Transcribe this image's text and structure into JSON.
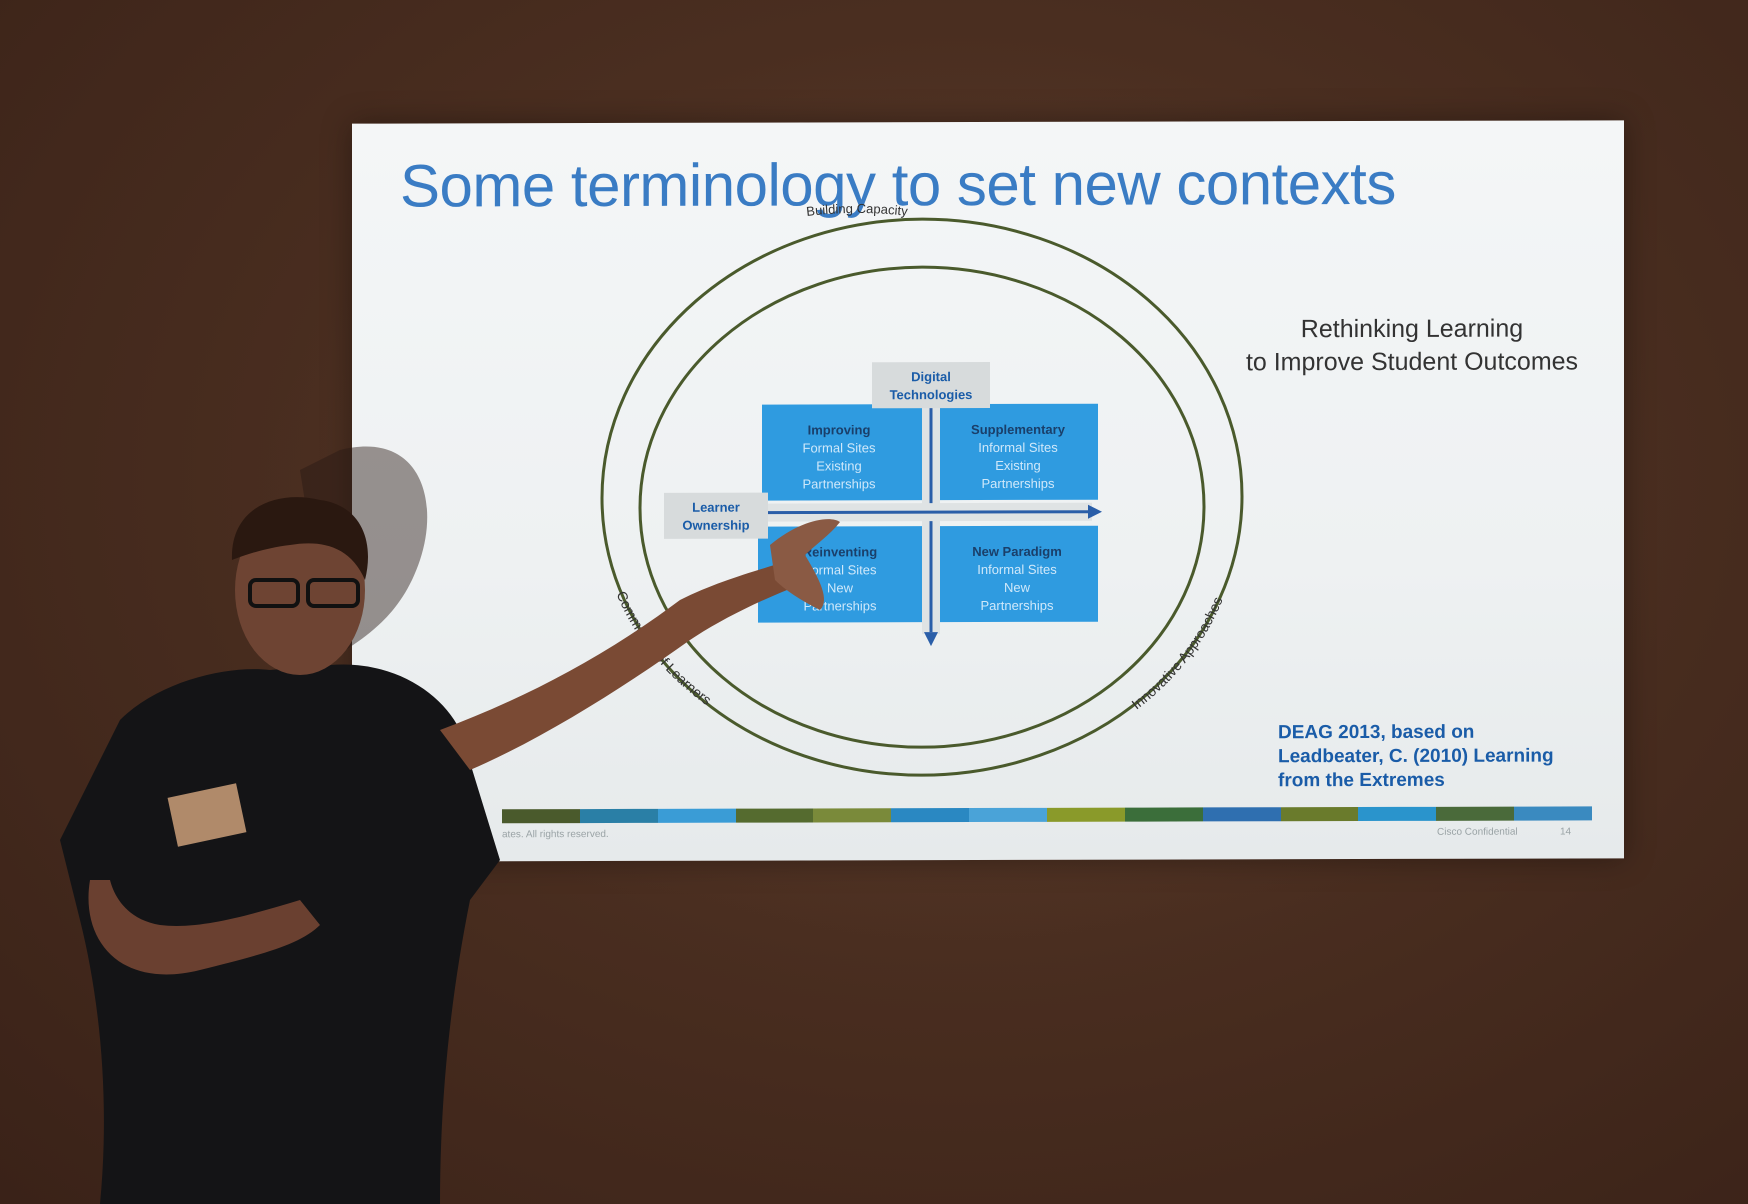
{
  "slide": {
    "title_part1": "Some terminology to set new contexts",
    "subtitle_line1": "Rethinking Learning",
    "subtitle_line2": "to Improve Student Outcomes",
    "credit_line1": "DEAG 2013, based on",
    "credit_line2": "Leadbeater, C. (2010) Learning",
    "credit_line3": "from the Extremes",
    "footer_left": "ates. All rights reserved.",
    "footer_right": "Cisco Confidential",
    "footer_page": "14"
  },
  "diagram": {
    "outer_ring_label": "Building Capacity",
    "left_ring_label": "Community of Learners",
    "right_ring_label": "Innovative Approaches",
    "y_axis_label_1": "Digital",
    "y_axis_label_2": "Technologies",
    "x_axis_label_1": "Learner",
    "x_axis_label_2": "Ownership",
    "quadrants": [
      {
        "title": "Improving",
        "line1": "Formal Sites",
        "line2": "Existing",
        "line3": "Partnerships"
      },
      {
        "title": "Supplementary",
        "line1": "Informal Sites",
        "line2": "Existing",
        "line3": "Partnerships"
      },
      {
        "title": "Reinventing",
        "line1": "Formal Sites",
        "line2": "New",
        "line3": "Partnerships"
      },
      {
        "title": "New Paradigm",
        "line1": "Informal Sites",
        "line2": "New",
        "line3": "Partnerships"
      }
    ]
  },
  "colors": {
    "title_blue": "#3a7cc4",
    "title_teal": "#3a6e6a",
    "quadrant_blue": "#2f9be0",
    "ring_green": "#4a5a2c",
    "credit_blue": "#1a5ca8"
  }
}
